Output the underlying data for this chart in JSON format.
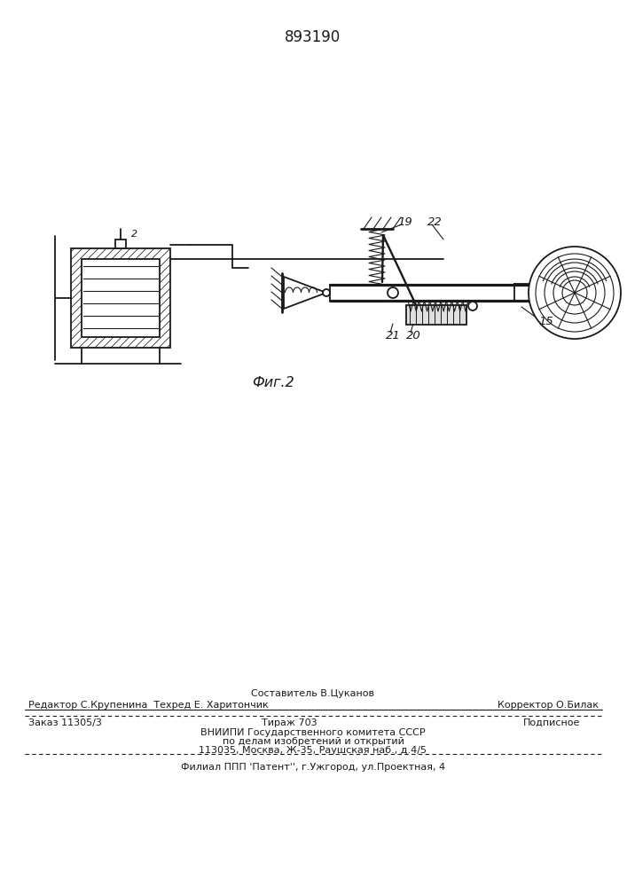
{
  "patent_number": "893190",
  "fig_label": "Фиг.2",
  "bg_color": "#ffffff",
  "line_color": "#1a1a1a",
  "footer": {
    "line1_center": "Составитель В.Цуканов",
    "line2_left": "Редактор С.Крупенина  Техред Е. Харитончик",
    "line2_right": "Корректор О.Билак",
    "line3_left": "Заказ 11305/3",
    "line3_center": "Тираж 703",
    "line3_right": "Подписное",
    "line4": "ВНИИПИ Государственного комитета СССР",
    "line5": "по делам изобретений и открытий",
    "line6": "113035, Москва, Ж-35, Раушская наб., д.4/5",
    "line7": "Филиал ППП 'Патент'', г.Ужгород, ул.Проектная, 4"
  }
}
